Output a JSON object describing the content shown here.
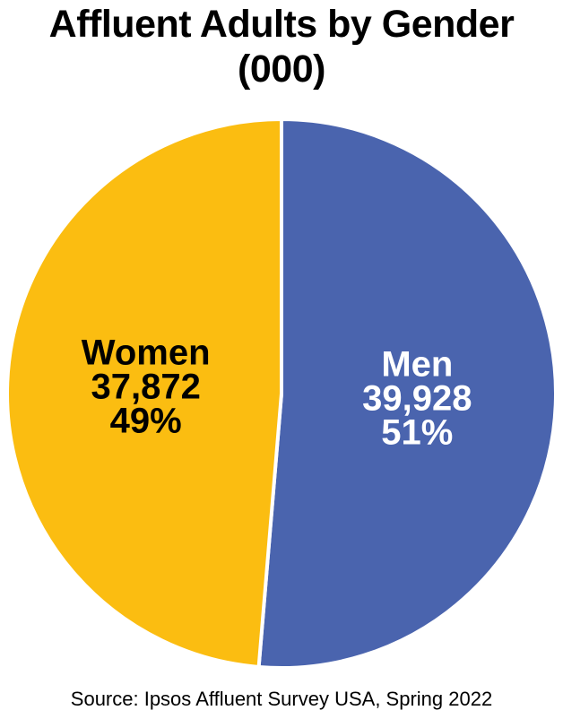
{
  "chart_data": {
    "type": "pie",
    "title_line1": "Affluent Adults by Gender",
    "title_line2": "(000)",
    "slices": [
      {
        "label": "Men",
        "value": 39928,
        "value_text": "39,928",
        "percent": 51,
        "percent_text": "51%",
        "color": "#4a64ae",
        "text_color": "#ffffff"
      },
      {
        "label": "Women",
        "value": 37872,
        "value_text": "37,872",
        "percent": 49,
        "percent_text": "49%",
        "color": "#fbbd11",
        "text_color": "#000000"
      }
    ],
    "start_at": "top",
    "direction": "clockwise",
    "legend": "none"
  },
  "source": "Source: Ipsos Affluent Survey USA, Spring 2022"
}
